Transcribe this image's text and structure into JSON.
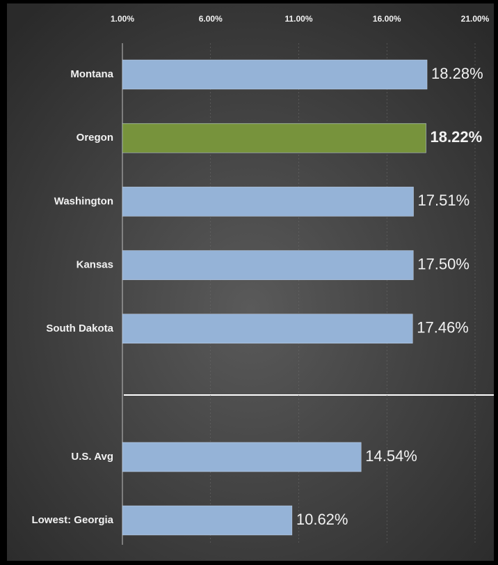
{
  "chart_data": {
    "type": "barh",
    "categories": [
      "Montana",
      "Oregon",
      "Washington",
      "Kansas",
      "South Dakota",
      "U.S. Avg",
      "Lowest: Georgia"
    ],
    "values": [
      18.28,
      18.22,
      17.51,
      17.5,
      17.46,
      14.54,
      10.62
    ],
    "value_labels": [
      "18.28%",
      "18.22%",
      "17.51%",
      "17.50%",
      "17.46%",
      "14.54%",
      "10.62%"
    ],
    "color": "#95b3d7",
    "colors": [
      "#95b3d7",
      "#77933c",
      "#95b3d7",
      "#95b3d7",
      "#95b3d7",
      "#95b3d7",
      "#95b3d7"
    ],
    "xlim": [
      1,
      21
    ],
    "xticks": [
      {
        "value": 1,
        "label": "1.00%"
      },
      {
        "value": 6,
        "label": "6.00%"
      },
      {
        "value": 11,
        "label": "11.00%"
      },
      {
        "value": 16,
        "label": "16.00%"
      },
      {
        "value": 21,
        "label": "21.00%"
      }
    ],
    "grid": true
  }
}
